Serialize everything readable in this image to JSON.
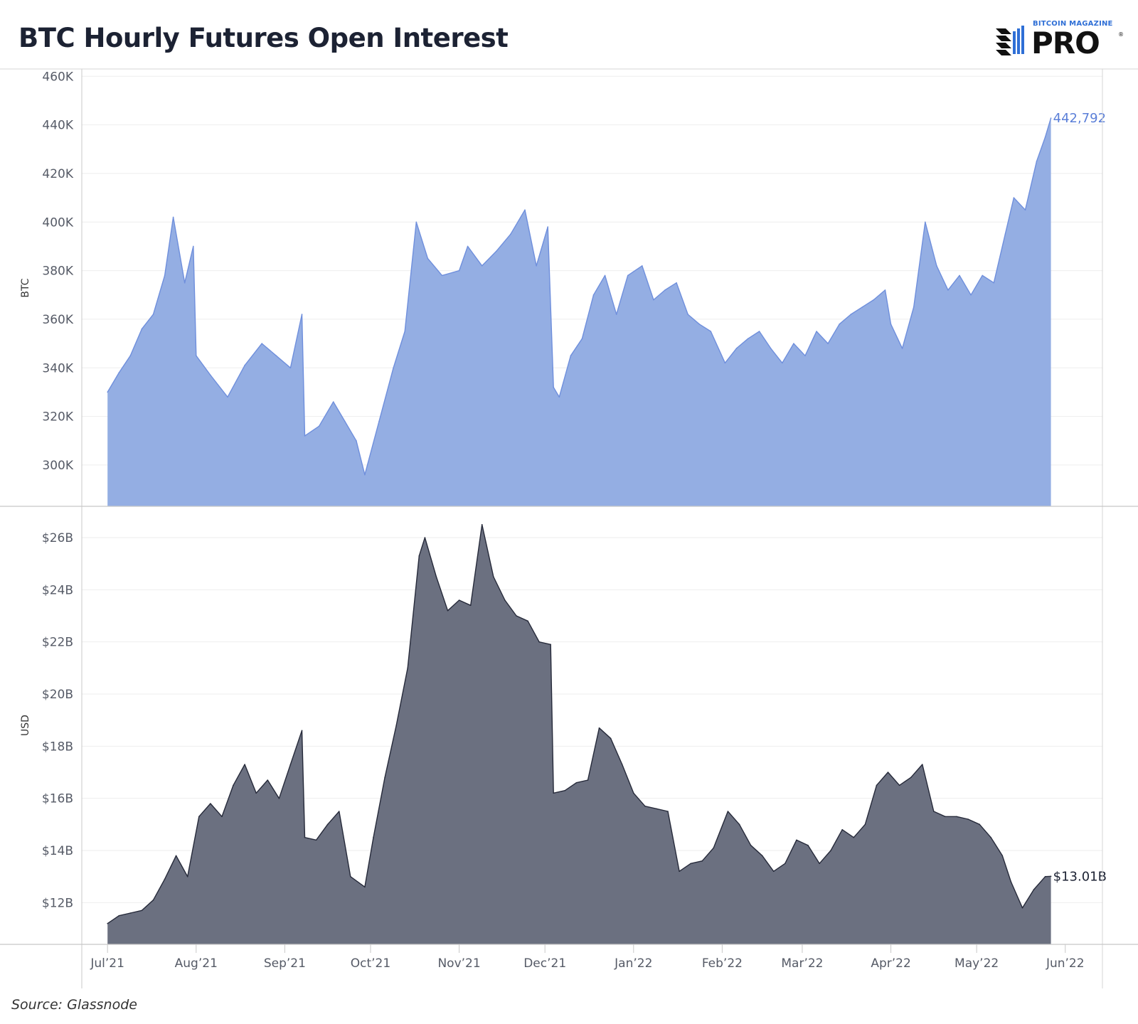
{
  "title": "BTC Hourly Futures Open Interest",
  "logo": {
    "top_text": "BITCOIN MAGAZINE",
    "main_text": "PRO",
    "reg": "®"
  },
  "source": "Source: Glassnode",
  "colors": {
    "btc_fill": "#94aee3",
    "btc_line": "#6f8fdc",
    "usd_fill": "#6b7080",
    "usd_line": "#262a3a",
    "btc_label": "#5b7fd8",
    "usd_label": "#1c2233"
  },
  "chart_data": [
    {
      "type": "area",
      "ylabel": "BTC",
      "ylim": [
        283000,
        463000
      ],
      "yticks": [
        300000,
        320000,
        340000,
        360000,
        380000,
        400000,
        420000,
        440000,
        460000
      ],
      "ytick_labels": [
        "300K",
        "320K",
        "340K",
        "360K",
        "380K",
        "400K",
        "420K",
        "440K",
        "460K"
      ],
      "x": [
        "2021-07-01",
        "2021-07-05",
        "2021-07-09",
        "2021-07-13",
        "2021-07-17",
        "2021-07-21",
        "2021-07-24",
        "2021-07-28",
        "2021-07-31",
        "2021-08-01",
        "2021-08-06",
        "2021-08-12",
        "2021-08-18",
        "2021-08-24",
        "2021-08-29",
        "2021-09-03",
        "2021-09-07",
        "2021-09-08",
        "2021-09-13",
        "2021-09-18",
        "2021-09-22",
        "2021-09-26",
        "2021-09-29",
        "2021-10-04",
        "2021-10-09",
        "2021-10-13",
        "2021-10-17",
        "2021-10-21",
        "2021-10-26",
        "2021-11-01",
        "2021-11-04",
        "2021-11-09",
        "2021-11-14",
        "2021-11-19",
        "2021-11-24",
        "2021-11-28",
        "2021-12-02",
        "2021-12-04",
        "2021-12-06",
        "2021-12-10",
        "2021-12-14",
        "2021-12-18",
        "2021-12-22",
        "2021-12-26",
        "2021-12-30",
        "2022-01-04",
        "2022-01-08",
        "2022-01-12",
        "2022-01-16",
        "2022-01-20",
        "2022-01-24",
        "2022-01-28",
        "2022-02-02",
        "2022-02-06",
        "2022-02-10",
        "2022-02-14",
        "2022-02-18",
        "2022-02-22",
        "2022-02-26",
        "2022-03-02",
        "2022-03-06",
        "2022-03-10",
        "2022-03-14",
        "2022-03-18",
        "2022-03-22",
        "2022-03-26",
        "2022-03-30",
        "2022-04-01",
        "2022-04-05",
        "2022-04-09",
        "2022-04-13",
        "2022-04-17",
        "2022-04-21",
        "2022-04-25",
        "2022-04-29",
        "2022-05-03",
        "2022-05-07",
        "2022-05-11",
        "2022-05-14",
        "2022-05-18",
        "2022-05-22",
        "2022-05-25",
        "2022-05-27"
      ],
      "values": [
        330000,
        338000,
        345000,
        356000,
        362000,
        378000,
        402000,
        375000,
        390000,
        345000,
        337000,
        328000,
        341000,
        350000,
        345000,
        340000,
        362000,
        312000,
        316000,
        326000,
        318000,
        310000,
        296000,
        318000,
        340000,
        355000,
        400000,
        385000,
        378000,
        380000,
        390000,
        382000,
        388000,
        395000,
        405000,
        382000,
        398000,
        332000,
        328000,
        345000,
        352000,
        370000,
        378000,
        362000,
        378000,
        382000,
        368000,
        372000,
        375000,
        362000,
        358000,
        355000,
        342000,
        348000,
        352000,
        355000,
        348000,
        342000,
        350000,
        345000,
        355000,
        350000,
        358000,
        362000,
        365000,
        368000,
        372000,
        358000,
        348000,
        365000,
        400000,
        382000,
        372000,
        378000,
        370000,
        378000,
        375000,
        395000,
        410000,
        405000,
        425000,
        435000,
        442792
      ],
      "last_label": "442,792"
    },
    {
      "type": "area",
      "ylabel": "USD",
      "ylim": [
        10400000000,
        27200000000
      ],
      "yticks": [
        12000000000,
        14000000000,
        16000000000,
        18000000000,
        20000000000,
        22000000000,
        24000000000,
        26000000000
      ],
      "ytick_labels": [
        "$12B",
        "$14B",
        "$16B",
        "$18B",
        "$20B",
        "$22B",
        "$24B",
        "$26B"
      ],
      "x": [
        "2021-07-01",
        "2021-07-05",
        "2021-07-09",
        "2021-07-13",
        "2021-07-17",
        "2021-07-21",
        "2021-07-25",
        "2021-07-29",
        "2021-08-02",
        "2021-08-06",
        "2021-08-10",
        "2021-08-14",
        "2021-08-18",
        "2021-08-22",
        "2021-08-26",
        "2021-08-30",
        "2021-09-03",
        "2021-09-07",
        "2021-09-08",
        "2021-09-12",
        "2021-09-16",
        "2021-09-20",
        "2021-09-24",
        "2021-09-29",
        "2021-10-02",
        "2021-10-06",
        "2021-10-10",
        "2021-10-14",
        "2021-10-18",
        "2021-10-20",
        "2021-10-24",
        "2021-10-28",
        "2021-11-01",
        "2021-11-05",
        "2021-11-09",
        "2021-11-13",
        "2021-11-17",
        "2021-11-21",
        "2021-11-25",
        "2021-11-29",
        "2021-12-03",
        "2021-12-04",
        "2021-12-08",
        "2021-12-12",
        "2021-12-16",
        "2021-12-20",
        "2021-12-24",
        "2021-12-28",
        "2022-01-01",
        "2022-01-05",
        "2022-01-09",
        "2022-01-13",
        "2022-01-17",
        "2022-01-21",
        "2022-01-25",
        "2022-01-29",
        "2022-02-03",
        "2022-02-07",
        "2022-02-11",
        "2022-02-15",
        "2022-02-19",
        "2022-02-23",
        "2022-02-27",
        "2022-03-03",
        "2022-03-07",
        "2022-03-11",
        "2022-03-15",
        "2022-03-19",
        "2022-03-23",
        "2022-03-27",
        "2022-03-31",
        "2022-04-04",
        "2022-04-08",
        "2022-04-12",
        "2022-04-16",
        "2022-04-20",
        "2022-04-24",
        "2022-04-28",
        "2022-05-02",
        "2022-05-06",
        "2022-05-10",
        "2022-05-13",
        "2022-05-17",
        "2022-05-21",
        "2022-05-25",
        "2022-05-27"
      ],
      "values": [
        11200000000,
        11500000000,
        11600000000,
        11700000000,
        12100000000,
        12900000000,
        13800000000,
        13000000000,
        15300000000,
        15800000000,
        15300000000,
        16500000000,
        17300000000,
        16200000000,
        16700000000,
        16000000000,
        17300000000,
        18600000000,
        14500000000,
        14400000000,
        15000000000,
        15500000000,
        13000000000,
        12600000000,
        14500000000,
        16800000000,
        18800000000,
        21000000000,
        25300000000,
        26000000000,
        24500000000,
        23200000000,
        23600000000,
        23400000000,
        26500000000,
        24500000000,
        23600000000,
        23000000000,
        22800000000,
        22000000000,
        21900000000,
        16200000000,
        16300000000,
        16600000000,
        16700000000,
        18700000000,
        18300000000,
        17300000000,
        16200000000,
        15700000000,
        15600000000,
        15500000000,
        13200000000,
        13500000000,
        13600000000,
        14100000000,
        15500000000,
        15000000000,
        14200000000,
        13800000000,
        13200000000,
        13500000000,
        14400000000,
        14200000000,
        13500000000,
        14000000000,
        14800000000,
        14500000000,
        15000000000,
        16500000000,
        17000000000,
        16500000000,
        16800000000,
        17300000000,
        15500000000,
        15300000000,
        15300000000,
        15200000000,
        15000000000,
        14500000000,
        13800000000,
        12800000000,
        11800000000,
        12500000000,
        13000000000,
        13010000000
      ],
      "last_label": "$13.01B"
    }
  ],
  "x_axis": {
    "ticks": [
      "2021-07-01",
      "2021-08-01",
      "2021-09-01",
      "2021-10-01",
      "2021-11-01",
      "2021-12-01",
      "2022-01-01",
      "2022-02-01",
      "2022-03-01",
      "2022-04-01",
      "2022-05-01",
      "2022-06-01"
    ],
    "labels": [
      "Jul’21",
      "Aug’21",
      "Sep’21",
      "Oct’21",
      "Nov’21",
      "Dec’21",
      "Jan’22",
      "Feb’22",
      "Mar’22",
      "Apr’22",
      "May’22",
      "Jun’22"
    ]
  }
}
